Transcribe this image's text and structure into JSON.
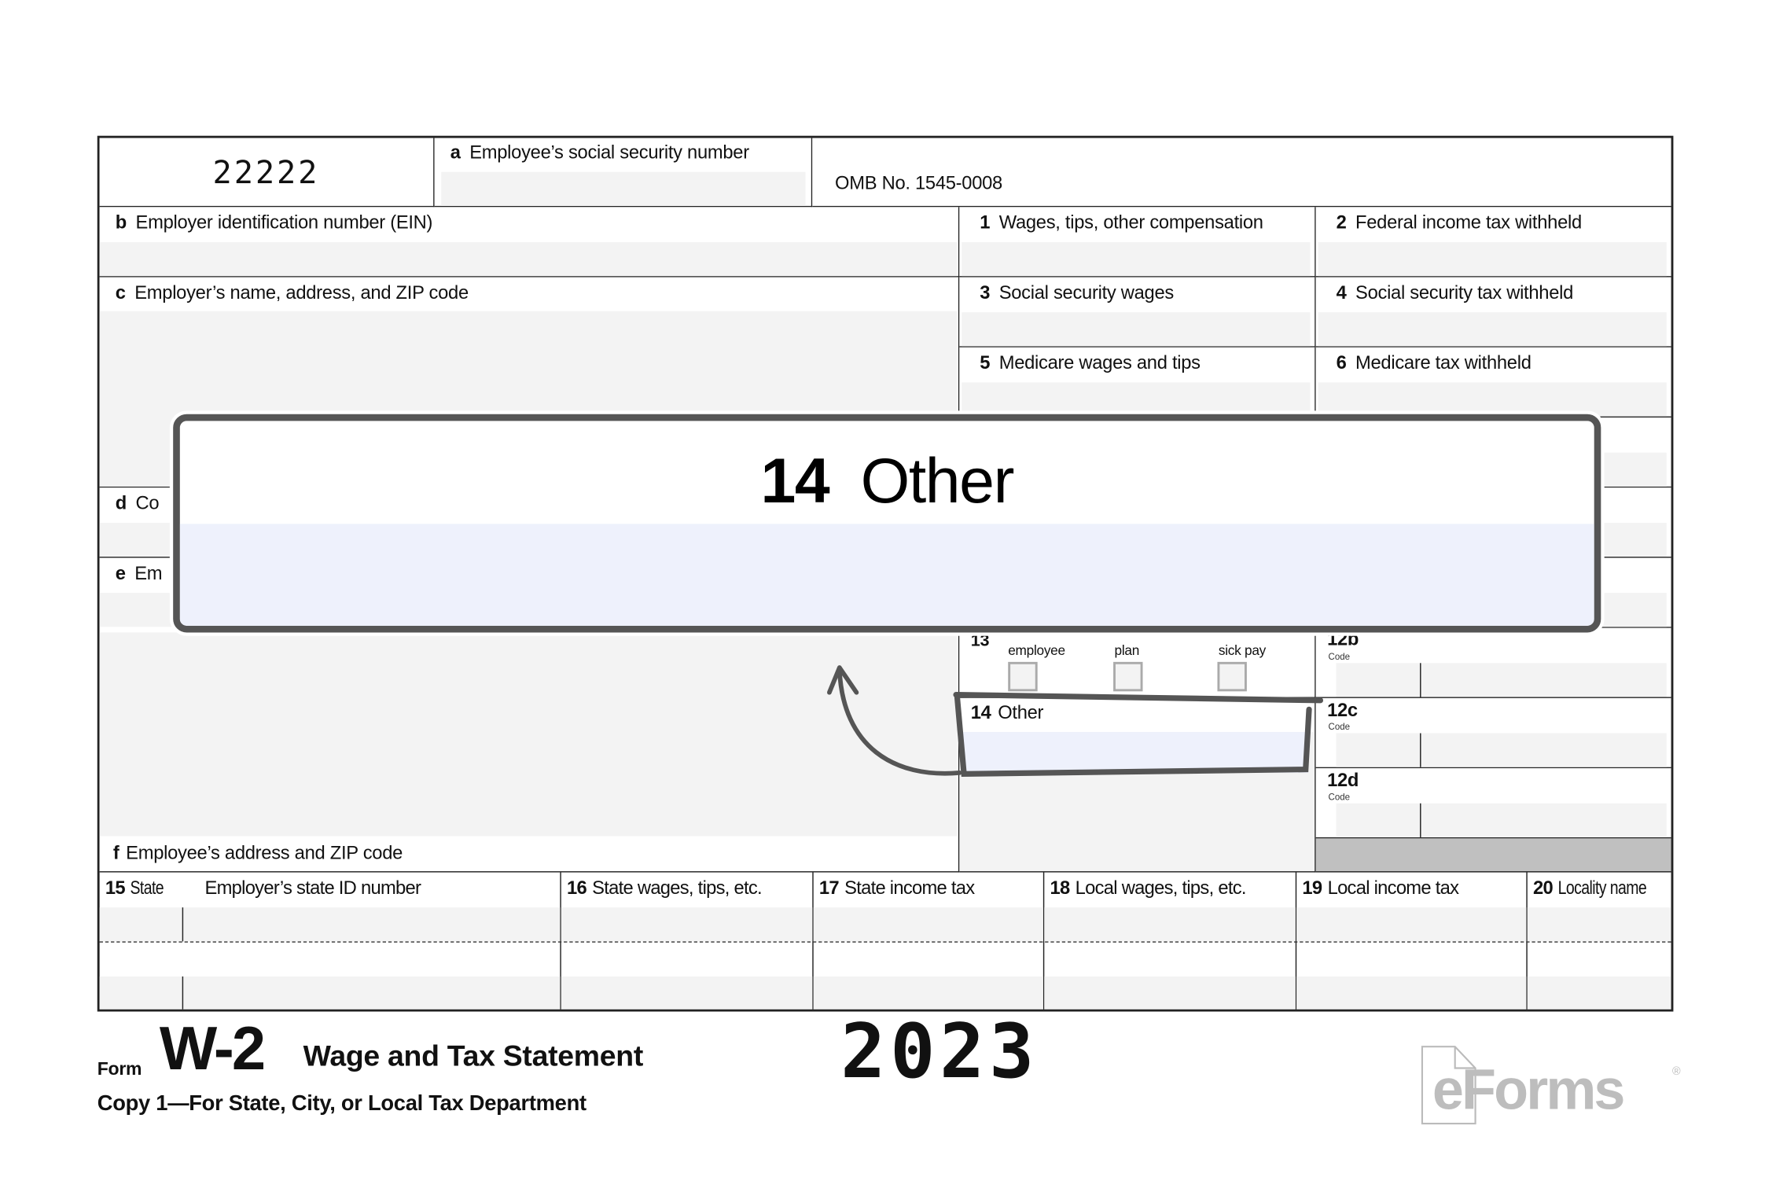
{
  "form": {
    "control_number": "22222",
    "box_a": {
      "letter": "a",
      "label": "Employee’s social security number"
    },
    "omb": "OMB No. 1545-0008",
    "box_b": {
      "letter": "b",
      "label": "Employer identification number (EIN)"
    },
    "box_c": {
      "letter": "c",
      "label": "Employer’s name, address, and ZIP code"
    },
    "box_d": {
      "letter": "d",
      "label": "Co"
    },
    "box_e": {
      "letter": "e",
      "label": "Em"
    },
    "box_f": {
      "letter": "f",
      "label": "Employee’s address and ZIP code"
    },
    "box_1": {
      "num": "1",
      "label": "Wages, tips, other compensation"
    },
    "box_2": {
      "num": "2",
      "label": "Federal income tax withheld"
    },
    "box_3": {
      "num": "3",
      "label": "Social security wages"
    },
    "box_4": {
      "num": "4",
      "label": "Social security tax withheld"
    },
    "box_5": {
      "num": "5",
      "label": "Medicare wages and tips"
    },
    "box_6": {
      "num": "6",
      "label": "Medicare tax withheld"
    },
    "box_13": {
      "num": "13",
      "checks": [
        "employee",
        "plan",
        "sick pay"
      ]
    },
    "box_14": {
      "num": "14",
      "label": "Other"
    },
    "box_12b": "12b",
    "box_12c": "12c",
    "box_12d": "12d",
    "code_label": "Code",
    "bottom": [
      {
        "num": "15",
        "label": "State"
      },
      {
        "num": "",
        "label": "Employer’s state ID number"
      },
      {
        "num": "16",
        "label": "State wages, tips, etc."
      },
      {
        "num": "17",
        "label": "State income tax"
      },
      {
        "num": "18",
        "label": "Local wages, tips, etc."
      },
      {
        "num": "19",
        "label": "Local income tax"
      },
      {
        "num": "20",
        "label": "Locality name"
      }
    ]
  },
  "callout": {
    "num": "14",
    "label": "Other"
  },
  "footer": {
    "form_word": "Form",
    "form_name": "W-2",
    "title": "Wage and Tax Statement",
    "year": "2023",
    "copy": "Copy 1—For State, City, or Local Tax Department",
    "logo": "eForms"
  },
  "colors": {
    "highlight_fill": "#eef1fc",
    "callout_border": "#555555",
    "field_fill": "#f3f3f3"
  }
}
